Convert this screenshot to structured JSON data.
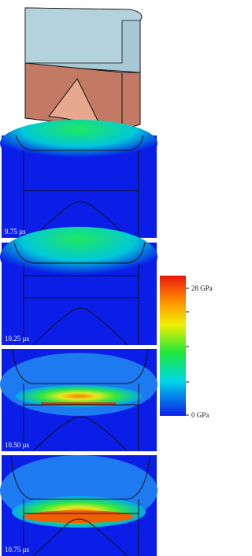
{
  "panels": [
    {
      "label": "9.75 µs"
    },
    {
      "label": "10.25 µs"
    },
    {
      "label": "10.50 µs"
    },
    {
      "label": "10.75 µs"
    }
  ],
  "colorbar": {
    "max_label": "28 GPa",
    "min_label": "0 GPa"
  }
}
